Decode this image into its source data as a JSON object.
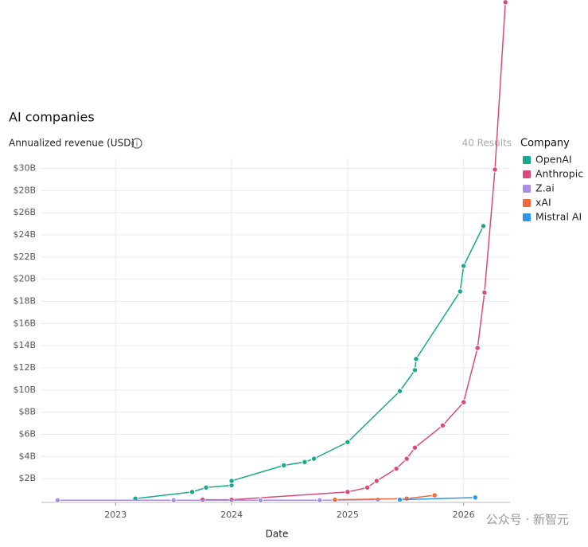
{
  "chart_data": {
    "type": "line",
    "title": "AI companies",
    "y_label": "Annualized revenue (USD)",
    "results": "40 Results",
    "x_label": "Date",
    "legend_title": "Company",
    "watermark": "公众号 · 新智元",
    "xlim": [
      2022.36,
      2026.4
    ],
    "xticks": [
      2023,
      2024,
      2025,
      2026
    ],
    "ylim": [
      0,
      30.9
    ],
    "yticks": [
      {
        "value": 2,
        "label": "$2B"
      },
      {
        "value": 4,
        "label": "$4B"
      },
      {
        "value": 6,
        "label": "$6B"
      },
      {
        "value": 8,
        "label": "$8B"
      },
      {
        "value": 10,
        "label": "$10B"
      },
      {
        "value": 12,
        "label": "$12B"
      },
      {
        "value": 14,
        "label": "$14B"
      },
      {
        "value": 16,
        "label": "$16B"
      },
      {
        "value": 18,
        "label": "$18B"
      },
      {
        "value": 20,
        "label": "$20B"
      },
      {
        "value": 22,
        "label": "$22B"
      },
      {
        "value": 24,
        "label": "$24B"
      },
      {
        "value": 26,
        "label": "$26B"
      },
      {
        "value": 28,
        "label": "$28B"
      },
      {
        "value": 30,
        "label": "$30B"
      }
    ],
    "grid": true,
    "legend": "right",
    "series": [
      {
        "name": "OpenAI",
        "color": "#1aa88e",
        "x": [
          2023.17,
          2023.66,
          2023.78,
          2024.0,
          2024.0,
          2024.45,
          2024.63,
          2024.71,
          2025.0,
          2025.45,
          2025.58,
          2025.59,
          2025.97,
          2026.0,
          2026.17
        ],
        "values": [
          0.2,
          0.8,
          1.2,
          1.4,
          1.8,
          3.2,
          3.5,
          3.8,
          5.3,
          9.9,
          11.8,
          12.8,
          18.9,
          21.2,
          24.8
        ]
      },
      {
        "name": "Anthropic",
        "color": "#d9497d",
        "x": [
          2023.75,
          2024.0,
          2025.0,
          2025.17,
          2025.25,
          2025.42,
          2025.51,
          2025.58,
          2025.82,
          2026.0,
          2026.12,
          2026.18,
          2026.27,
          2026.36
        ],
        "values": [
          0.1,
          0.1,
          0.8,
          1.2,
          1.8,
          2.9,
          3.8,
          4.8,
          6.8,
          8.9,
          13.8,
          18.8,
          29.9,
          45
        ]
      },
      {
        "name": "Z.ai",
        "color": "#a98ee6",
        "x": [
          2022.5,
          2023.5,
          2024.25,
          2024.76,
          2025.26
        ],
        "values": [
          0.05,
          0.05,
          0.05,
          0.05,
          0.1
        ]
      },
      {
        "name": "xAI",
        "color": "#f06a3c",
        "x": [
          2024.89,
          2025.51,
          2025.75
        ],
        "values": [
          0.1,
          0.2,
          0.5
        ]
      },
      {
        "name": "Mistral AI",
        "color": "#2f97e8",
        "x": [
          2025.45,
          2026.1
        ],
        "values": [
          0.1,
          0.3
        ]
      }
    ]
  }
}
